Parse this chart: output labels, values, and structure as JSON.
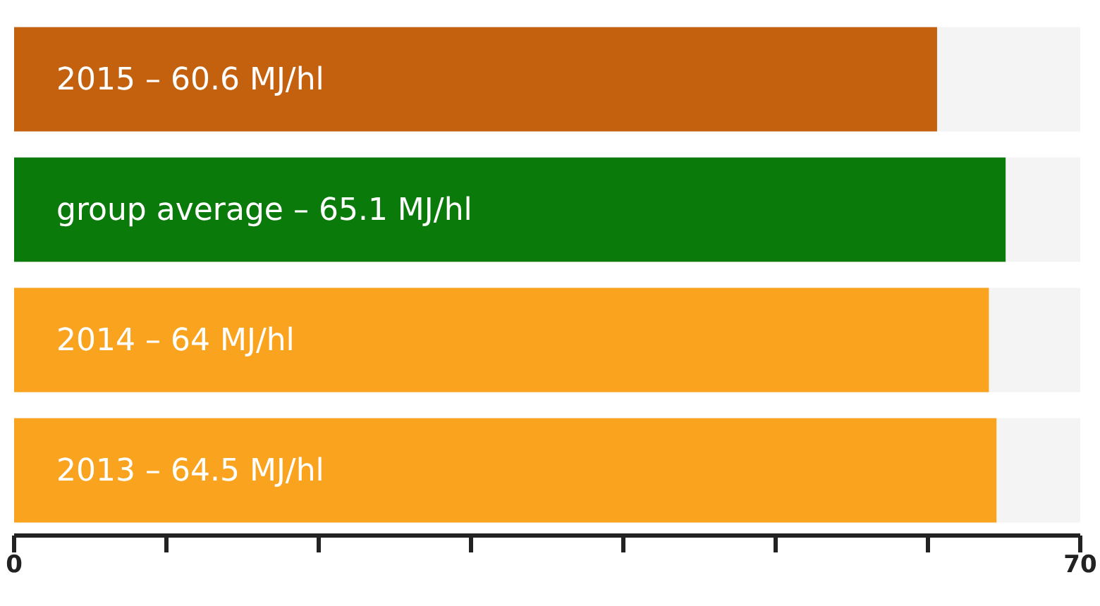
{
  "chart_data": {
    "type": "bar",
    "orientation": "horizontal",
    "categories": [
      "2015 –",
      "group average –",
      "2014 –",
      "2013 –"
    ],
    "values": [
      60.6,
      65.1,
      64,
      64.5
    ],
    "colors": [
      "#c4610f",
      "#0a7a0a",
      "#f9a31e",
      "#f9a31e"
    ],
    "value_labels": [
      "60.6 MJ/hl",
      "65.1 MJ/hl",
      "64 MJ/hl",
      "64.5 MJ/hl"
    ],
    "xlim": [
      0,
      70
    ],
    "xticks": [
      0,
      {
        "value": 10,
        "label": null
      },
      {
        "value": 20,
        "label": null
      },
      {
        "value": 30,
        "label": null
      },
      {
        "value": 40,
        "label": null
      },
      {
        "value": 50,
        "label": null
      },
      {
        "value": 60,
        "label": null
      },
      70
    ],
    "grid": false,
    "legend": false
  }
}
